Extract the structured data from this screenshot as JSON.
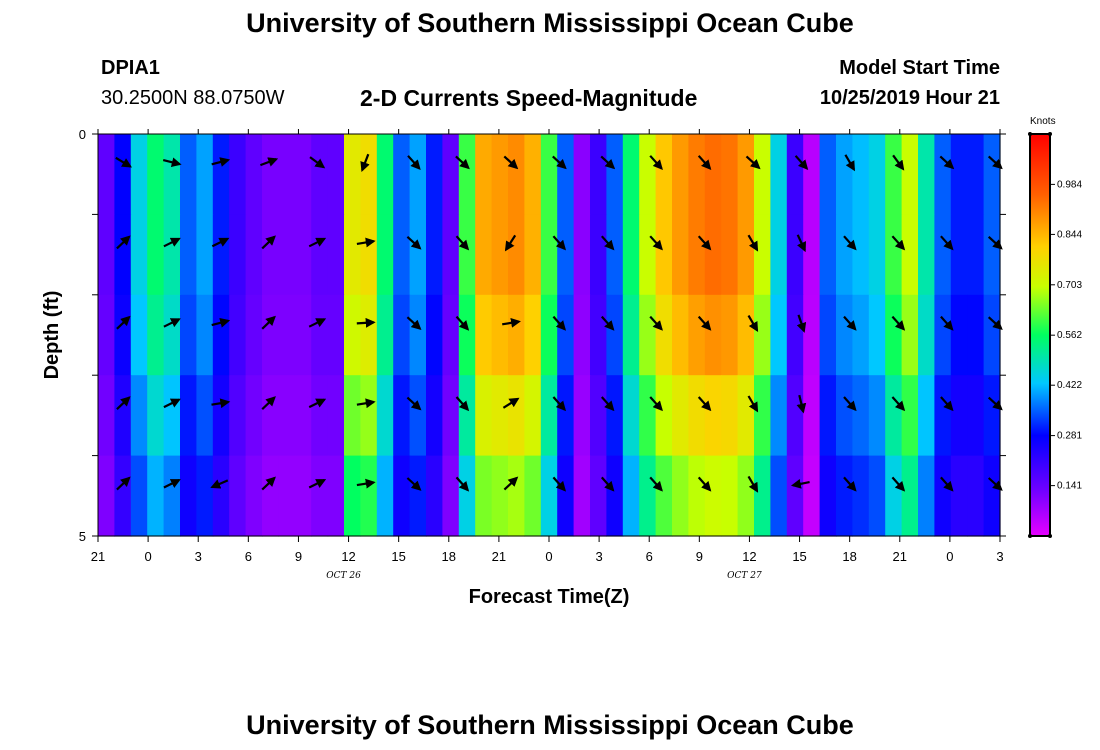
{
  "header": {
    "title_top": "University of Southern Mississippi Ocean Cube",
    "title_bottom": "University of Southern Mississippi Ocean Cube",
    "station_id": "DPIA1",
    "station_coords": "30.2500N 88.0750W",
    "plot_title": "2-D Currents Speed-Magnitude",
    "model_start_label": "Model Start Time",
    "model_start_value": "10/25/2019 Hour 21"
  },
  "chart_data": {
    "type": "heatmap",
    "title": "2-D Currents Speed-Magnitude",
    "xlabel": "Forecast Time(Z)",
    "ylabel": "Depth (ft)",
    "colorbar_label": "Knots",
    "colorbar_ticks": [
      "0.984",
      "0.844",
      "0.703",
      "0.562",
      "0.422",
      "0.281",
      "0.141"
    ],
    "colorbar_values": [
      0.984,
      0.844,
      0.703,
      0.562,
      0.422,
      0.281,
      0.141
    ],
    "colorbar_range": [
      0.0,
      1.125
    ],
    "ylim": [
      0,
      5
    ],
    "y_tick_labels": [
      "0",
      "5"
    ],
    "x_hours": [
      0,
      54
    ],
    "x_tick_labels": [
      "21",
      "0",
      "3",
      "6",
      "9",
      "12",
      "15",
      "18",
      "21",
      "0",
      "3",
      "6",
      "9",
      "12",
      "15",
      "18",
      "21",
      "0",
      "3"
    ],
    "date_labels": [
      {
        "text": "OCT 26",
        "hour": 15
      },
      {
        "text": "OCT 27",
        "hour": 39
      }
    ],
    "depth_layers": 5,
    "column_speeds": [
      0.15,
      0.28,
      0.45,
      0.55,
      0.5,
      0.35,
      0.4,
      0.3,
      0.2,
      0.15,
      0.12,
      0.12,
      0.12,
      0.15,
      0.15,
      0.75,
      0.78,
      0.55,
      0.35,
      0.4,
      0.3,
      0.15,
      0.6,
      0.86,
      0.88,
      0.9,
      0.85,
      0.6,
      0.35,
      0.1,
      0.2,
      0.35,
      0.55,
      0.7,
      0.82,
      0.88,
      0.92,
      0.94,
      0.93,
      0.88,
      0.7,
      0.45,
      0.2,
      0.05,
      0.35,
      0.4,
      0.42,
      0.45,
      0.6,
      0.7,
      0.5,
      0.35,
      0.3,
      0.3,
      0.35
    ],
    "layer_factors": [
      1.0,
      1.0,
      0.95,
      0.85,
      0.75
    ],
    "arrows": [
      [
        0.25,
        1.7,
        0.4,
        0.35,
        0.4,
        0.4,
        0.8,
        0.75,
        0.75,
        0.5,
        0.7
      ],
      [
        0.35,
        2.2,
        0.4,
        0.35,
        0.4,
        0.5,
        0.8,
        0.75,
        0.75,
        0.5,
        0.7
      ],
      [
        0.35,
        2.2,
        0.4,
        0.35,
        0.4,
        0.4,
        0.8,
        0.75,
        0.75,
        0.5,
        0.7
      ],
      [
        0.3,
        2.0,
        0.4,
        0.35,
        0.4,
        0.4,
        0.75,
        0.75,
        0.7,
        0.5,
        0.65
      ],
      [
        0.25,
        1.8,
        0.35,
        0.3,
        0.35,
        0.3,
        0.7,
        0.7,
        0.65,
        0.45,
        0.6
      ]
    ],
    "arrow_dirs": [
      [
        [
          2.6,
          0
        ],
        [
          2.9,
          0
        ],
        [
          3.4,
          0
        ],
        [
          3.5,
          0
        ],
        [
          2.5,
          0
        ],
        [
          1.2,
          0
        ],
        [
          2.3,
          0
        ],
        [
          2.4,
          0
        ],
        [
          2.4,
          0
        ],
        [
          2.4,
          0
        ],
        [
          2.4,
          0
        ],
        [
          2.3,
          0
        ],
        [
          2.3,
          0
        ],
        [
          2.4,
          0
        ],
        [
          2.3,
          0
        ],
        [
          2.1,
          0
        ],
        [
          2.2,
          0
        ],
        [
          2.4,
          0
        ],
        [
          2.4,
          0
        ]
      ],
      [
        [
          3.9,
          0
        ],
        [
          3.6,
          0
        ],
        [
          3.6,
          0
        ],
        [
          3.9,
          0
        ],
        [
          3.6,
          0
        ],
        [
          3.3,
          0
        ],
        [
          2.4,
          0
        ],
        [
          2.3,
          0
        ],
        [
          1.0,
          0
        ],
        [
          2.3,
          0
        ],
        [
          2.3,
          0
        ],
        [
          2.3,
          0
        ],
        [
          2.3,
          0
        ],
        [
          2.1,
          0
        ],
        [
          2.0,
          0
        ],
        [
          2.3,
          0
        ],
        [
          2.3,
          0
        ],
        [
          2.3,
          0
        ],
        [
          2.4,
          0
        ]
      ],
      [
        [
          3.9,
          0
        ],
        [
          3.6,
          0
        ],
        [
          3.4,
          0
        ],
        [
          3.9,
          0
        ],
        [
          3.6,
          0
        ],
        [
          3.2,
          0
        ],
        [
          2.4,
          0
        ],
        [
          2.3,
          0
        ],
        [
          3.3,
          0
        ],
        [
          2.3,
          0
        ],
        [
          2.3,
          0
        ],
        [
          2.3,
          0
        ],
        [
          2.3,
          0
        ],
        [
          2.1,
          0
        ],
        [
          1.9,
          0
        ],
        [
          2.3,
          0
        ],
        [
          2.3,
          0
        ],
        [
          2.3,
          0
        ],
        [
          2.4,
          0
        ]
      ],
      [
        [
          3.9,
          0
        ],
        [
          3.6,
          0
        ],
        [
          3.3,
          0
        ],
        [
          3.9,
          0
        ],
        [
          3.6,
          0
        ],
        [
          3.3,
          0
        ],
        [
          2.4,
          0
        ],
        [
          2.3,
          0
        ],
        [
          3.7,
          0
        ],
        [
          2.3,
          0
        ],
        [
          2.3,
          0
        ],
        [
          2.3,
          0
        ],
        [
          2.3,
          0
        ],
        [
          2.1,
          0
        ],
        [
          1.8,
          0
        ],
        [
          2.3,
          0
        ],
        [
          2.3,
          0
        ],
        [
          2.3,
          0
        ],
        [
          2.4,
          0
        ]
      ],
      [
        [
          3.9,
          0
        ],
        [
          3.6,
          0
        ],
        [
          0.4,
          0
        ],
        [
          3.9,
          0
        ],
        [
          3.6,
          0
        ],
        [
          3.3,
          0
        ],
        [
          2.4,
          0
        ],
        [
          2.3,
          0
        ],
        [
          3.9,
          0
        ],
        [
          2.3,
          0
        ],
        [
          2.3,
          0
        ],
        [
          2.3,
          0
        ],
        [
          2.3,
          0
        ],
        [
          2.1,
          0
        ],
        [
          0.2,
          0
        ],
        [
          2.3,
          0
        ],
        [
          2.3,
          0
        ],
        [
          2.3,
          0
        ],
        [
          2.4,
          0
        ]
      ]
    ]
  }
}
